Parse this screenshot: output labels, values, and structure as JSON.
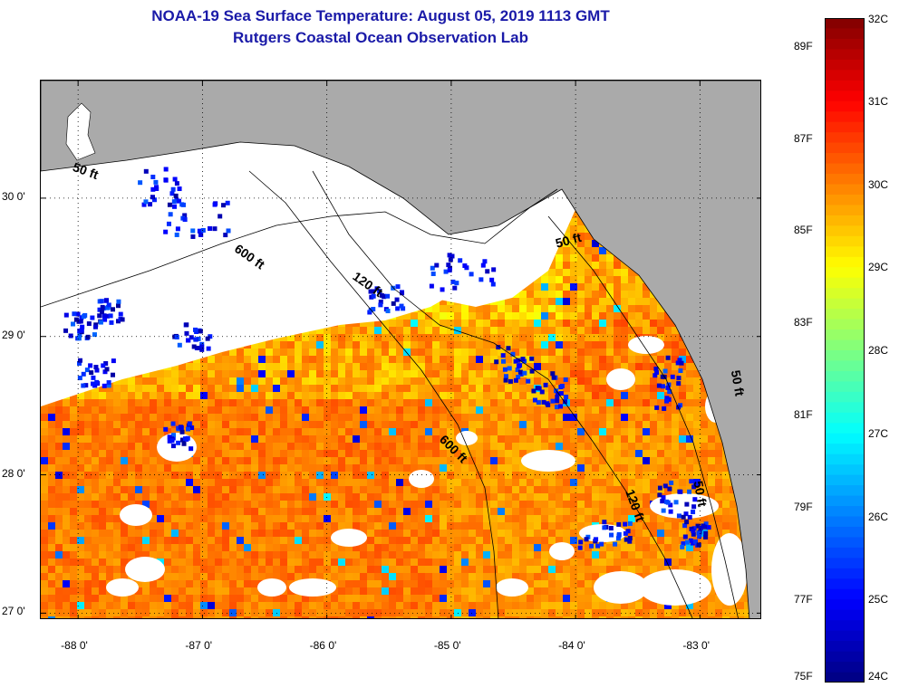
{
  "title": {
    "line1": "NOAA-19 Sea Surface Temperature:  August 05, 2019 1113 GMT",
    "line2": "Rutgers Coastal Ocean Observation Lab"
  },
  "colors": {
    "title": "#1a1aa8",
    "land": "#aaaaaa",
    "cloud_mask": "#ffffff",
    "contour": "#000000"
  },
  "map": {
    "lon_range": [
      -88.3,
      -82.5
    ],
    "lat_range": [
      26.95,
      30.85
    ],
    "lon_ticks": [
      {
        "value": -88,
        "label": "-88 0'"
      },
      {
        "value": -87,
        "label": "-87 0'"
      },
      {
        "value": -86,
        "label": "-86 0'"
      },
      {
        "value": -85,
        "label": "-85 0'"
      },
      {
        "value": -84,
        "label": "-84 0'"
      },
      {
        "value": -83,
        "label": "-83 0'"
      }
    ],
    "lat_ticks": [
      {
        "value": 30,
        "label": "30 0'"
      },
      {
        "value": 29,
        "label": "29 0'"
      },
      {
        "value": 28,
        "label": "28 0'"
      },
      {
        "value": 27,
        "label": "27 0'"
      }
    ],
    "depth_labels": [
      {
        "text": "50 ft",
        "lon": -88.05,
        "lat": 30.2,
        "rotate": 20
      },
      {
        "text": "600 ft",
        "lon": -86.75,
        "lat": 29.62,
        "rotate": 35
      },
      {
        "text": "120 ft",
        "lon": -85.8,
        "lat": 29.42,
        "rotate": 35
      },
      {
        "text": "50 ft",
        "lon": -84.15,
        "lat": 29.64,
        "rotate": -15
      },
      {
        "text": "600 ft",
        "lon": -85.1,
        "lat": 28.25,
        "rotate": 45
      },
      {
        "text": "120 ft",
        "lon": -83.6,
        "lat": 27.88,
        "rotate": 70
      },
      {
        "text": "50 ft",
        "lon": -83.05,
        "lat": 27.95,
        "rotate": 80
      },
      {
        "text": "50 ft",
        "lon": -82.75,
        "lat": 28.75,
        "rotate": 80
      }
    ]
  },
  "colorbar": {
    "celsius": [
      {
        "value": 32,
        "label": "32C"
      },
      {
        "value": 31,
        "label": "31C"
      },
      {
        "value": 30,
        "label": "30C"
      },
      {
        "value": 29,
        "label": "29C"
      },
      {
        "value": 28,
        "label": "28C"
      },
      {
        "value": 27,
        "label": "27C"
      },
      {
        "value": 26,
        "label": "26C"
      },
      {
        "value": 25,
        "label": "25C"
      },
      {
        "value": 24,
        "label": "24C"
      }
    ],
    "fahrenheit": [
      {
        "value": 89,
        "label": "89F"
      },
      {
        "value": 87,
        "label": "87F"
      },
      {
        "value": 85,
        "label": "85F"
      },
      {
        "value": 83,
        "label": "83F"
      },
      {
        "value": 81,
        "label": "81F"
      },
      {
        "value": 79,
        "label": "79F"
      },
      {
        "value": 77,
        "label": "77F"
      },
      {
        "value": 75,
        "label": "75F"
      }
    ],
    "range_c": [
      24,
      32
    ],
    "stops": [
      "#00007f",
      "#0000ff",
      "#007fff",
      "#00ffff",
      "#7fff7f",
      "#ffff00",
      "#ff7f00",
      "#ff0000",
      "#7f0000"
    ]
  }
}
